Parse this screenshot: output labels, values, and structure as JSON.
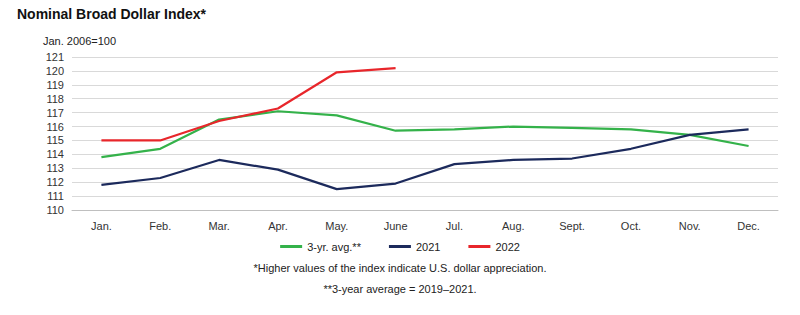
{
  "chart_data": {
    "type": "line",
    "title": "Nominal Broad Dollar Index*",
    "subtitle": "Jan. 2006=100",
    "annotations": [
      "*Higher values of the index indicate U.S. dollar appreciation.",
      "**3-year average = 2019–2021."
    ],
    "categories": [
      "Jan.",
      "Feb.",
      "Mar.",
      "Apr.",
      "May.",
      "June",
      "Jul.",
      "Aug.",
      "Sept.",
      "Oct.",
      "Nov.",
      "Dec."
    ],
    "series": [
      {
        "name": "3-yr. avg.**",
        "color": "#34b24a",
        "values": [
          113.8,
          114.4,
          116.5,
          117.1,
          116.8,
          115.7,
          115.8,
          116.0,
          115.9,
          115.8,
          115.4,
          114.6
        ]
      },
      {
        "name": "2021",
        "color": "#1c2a5c",
        "values": [
          111.8,
          112.3,
          113.6,
          112.9,
          111.5,
          111.9,
          113.3,
          113.6,
          113.7,
          114.4,
          115.4,
          115.8
        ]
      },
      {
        "name": "2022",
        "color": "#e8262b",
        "values": [
          115.0,
          115.0,
          116.4,
          117.3,
          119.9,
          120.2,
          null,
          null,
          null,
          null,
          null,
          null
        ]
      }
    ],
    "ylim": [
      110,
      121
    ],
    "yticks": [
      110,
      111,
      112,
      113,
      114,
      115,
      116,
      117,
      118,
      119,
      120,
      121
    ],
    "grid": true,
    "legend": "bottom",
    "marker": "none"
  }
}
